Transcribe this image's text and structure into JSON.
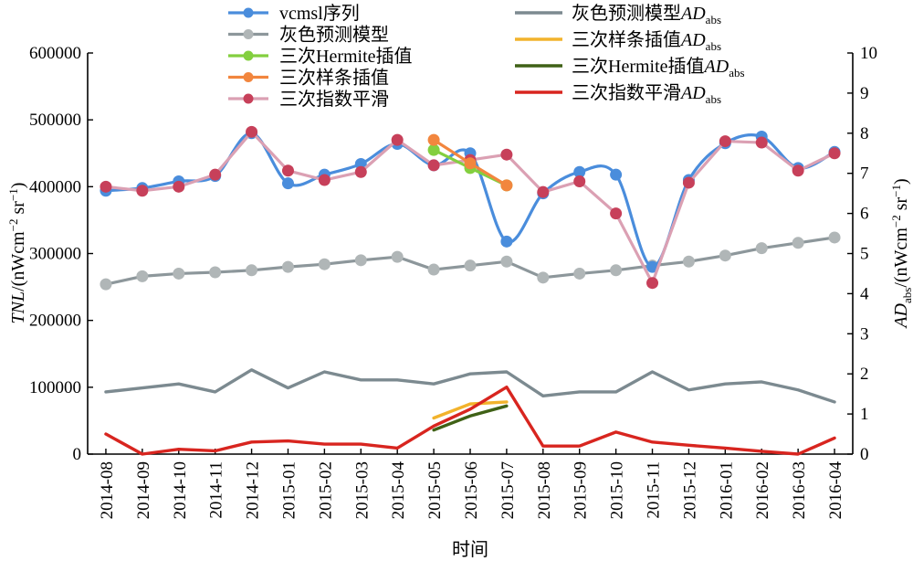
{
  "chart_data": {
    "type": "line",
    "xlabel": "时间",
    "ylabel_left": "TNL/(nW cm⁻² sr⁻¹)",
    "ylabel_right": "AD_abs/(nW cm⁻² sr⁻¹)",
    "ylim_left": [
      0,
      600000
    ],
    "ylim_right": [
      0,
      10
    ],
    "yticks_left": [
      "0",
      "100000",
      "200000",
      "300000",
      "400000",
      "500000",
      "600000"
    ],
    "yticks_right": [
      "0",
      "1",
      "2",
      "3",
      "4",
      "5",
      "6",
      "7",
      "8",
      "9",
      "10"
    ],
    "categories": [
      "2014-08",
      "2014-09",
      "2014-10",
      "2014-11",
      "2014-12",
      "2015-01",
      "2015-02",
      "2015-03",
      "2015-04",
      "2015-05",
      "2015-06",
      "2015-07",
      "2015-08",
      "2015-09",
      "2015-10",
      "2015-11",
      "2015-12",
      "2016-01",
      "2016-02",
      "2016-03",
      "2016-04"
    ],
    "legend_position": "top",
    "series": [
      {
        "name": "vcmsl序列",
        "axis": "left",
        "color": "#4a8ddc",
        "marker": true,
        "smooth": true,
        "values": [
          394000,
          398000,
          408000,
          416000,
          480000,
          405000,
          418000,
          434000,
          464000,
          432000,
          450000,
          318000,
          390000,
          422000,
          418000,
          280000,
          410000,
          465000,
          475000,
          428000,
          452000
        ]
      },
      {
        "name": "灰色预测模型",
        "axis": "left",
        "color": "#b0b6b7",
        "lineColor": "#8d979b",
        "marker": true,
        "smooth": false,
        "values": [
          254000,
          266000,
          270000,
          272000,
          275000,
          280000,
          284000,
          290000,
          295000,
          276000,
          282000,
          288000,
          264000,
          270000,
          275000,
          282000,
          288000,
          297000,
          308000,
          316000,
          324000
        ]
      },
      {
        "name": "三次Hermite插值",
        "axis": "left",
        "color": "#83cf3f",
        "marker": true,
        "smooth": false,
        "x": [
          "2015-05",
          "2015-06",
          "2015-07"
        ],
        "values": [
          455000,
          428000,
          402000
        ]
      },
      {
        "name": "三次样条插值",
        "axis": "left",
        "color": "#f2863e",
        "marker": true,
        "smooth": false,
        "x": [
          "2015-05",
          "2015-06",
          "2015-07"
        ],
        "values": [
          470000,
          435000,
          402000
        ]
      },
      {
        "name": "三次指数平滑",
        "axis": "left",
        "color": "#c7405a",
        "lineColor": "#dba0b3",
        "marker": true,
        "smooth": false,
        "values": [
          400000,
          394000,
          400000,
          418000,
          482000,
          424000,
          410000,
          422000,
          470000,
          432000,
          440000,
          448000,
          392000,
          408000,
          360000,
          256000,
          406000,
          468000,
          466000,
          424000,
          450000
        ]
      },
      {
        "name": "灰色预测模型AD_abs",
        "axis": "right",
        "color": "#7c8a90",
        "marker": false,
        "smooth": false,
        "values": [
          1.55,
          1.65,
          1.75,
          1.55,
          2.1,
          1.65,
          2.05,
          1.85,
          1.85,
          1.75,
          2.0,
          2.05,
          1.45,
          1.55,
          1.55,
          2.05,
          1.6,
          1.75,
          1.8,
          1.6,
          1.3
        ]
      },
      {
        "name": "三次样条插值AD_abs",
        "axis": "right",
        "color": "#f2b32c",
        "marker": false,
        "smooth": false,
        "x": [
          "2015-05",
          "2015-06",
          "2015-07"
        ],
        "values": [
          0.9,
          1.25,
          1.3
        ]
      },
      {
        "name": "三次Hermite插值AD_abs",
        "axis": "right",
        "color": "#3f6116",
        "marker": false,
        "smooth": false,
        "x": [
          "2015-05",
          "2015-06",
          "2015-07"
        ],
        "values": [
          0.6,
          0.95,
          1.2
        ]
      },
      {
        "name": "三次指数平滑AD_abs",
        "axis": "right",
        "color": "#d8251f",
        "marker": false,
        "smooth": false,
        "values": [
          0.5,
          0.0,
          0.12,
          0.08,
          0.3,
          0.33,
          0.25,
          0.25,
          0.15,
          0.7,
          1.12,
          1.67,
          0.2,
          0.2,
          0.55,
          0.3,
          0.22,
          0.15,
          0.07,
          0.0,
          0.4
        ]
      }
    ],
    "legend_left": [
      {
        "label": "vcmsl序列",
        "series": 0
      },
      {
        "label": "灰色预测模型",
        "series": 1
      },
      {
        "label": "三次Hermite插值",
        "series": 2
      },
      {
        "label": "三次样条插值",
        "series": 3
      },
      {
        "label": "三次指数平滑",
        "series": 4
      }
    ],
    "legend_right": [
      {
        "label": "灰色预测模型AD_abs",
        "series": 5
      },
      {
        "label": "三次样条插值AD_abs",
        "series": 6
      },
      {
        "label": "三次Hermite插值AD_abs",
        "series": 7
      },
      {
        "label": "三次指数平滑AD_abs",
        "series": 8
      }
    ]
  }
}
